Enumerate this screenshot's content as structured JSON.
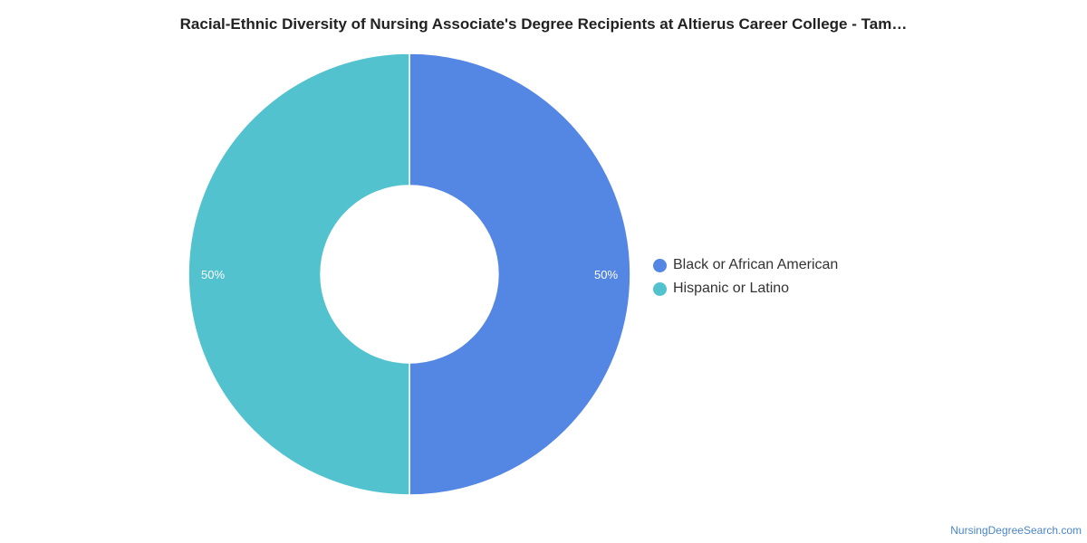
{
  "chart_data": {
    "type": "pie",
    "title": "Racial-Ethnic Diversity of Nursing Associate's Degree Recipients at Altierus Career College - Tam…",
    "donut": true,
    "legend_position": "right",
    "slices": [
      {
        "label": "Black or African American",
        "value": 50,
        "value_label": "50%",
        "color": "#5486e3"
      },
      {
        "label": "Hispanic or Latino",
        "value": 50,
        "value_label": "50%",
        "color": "#52c2cf"
      }
    ]
  },
  "footer": {
    "source": "NursingDegreeSearch.com"
  }
}
